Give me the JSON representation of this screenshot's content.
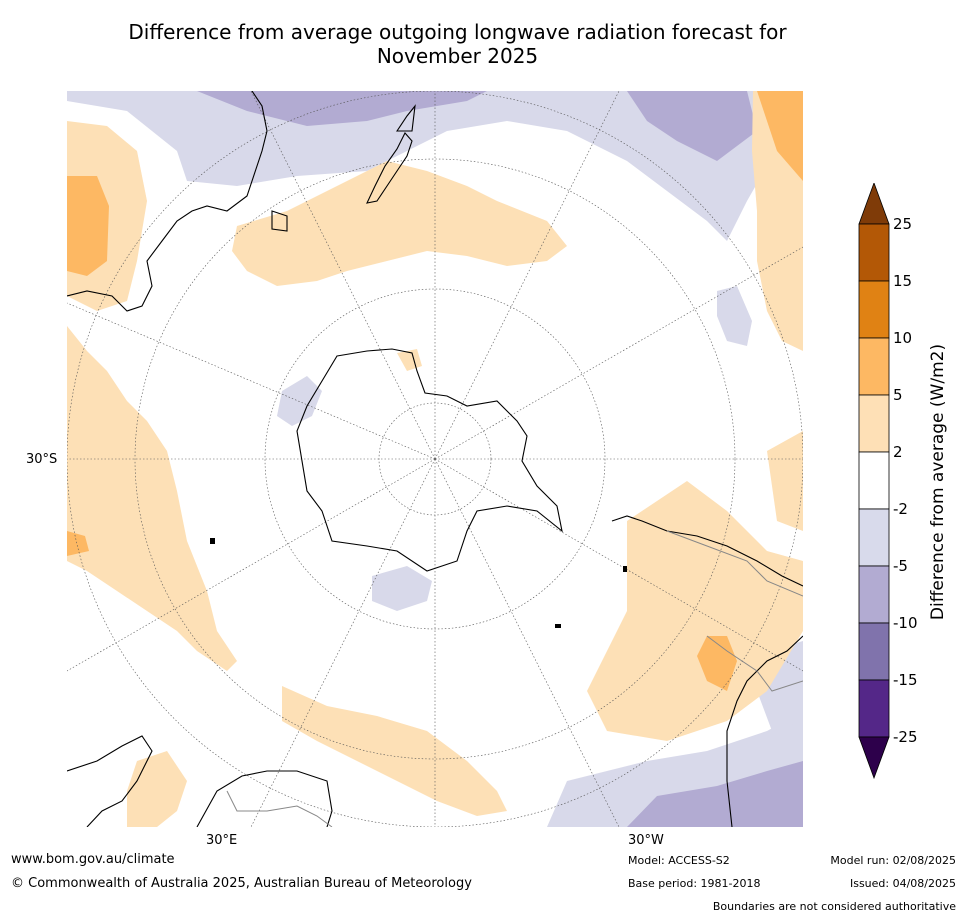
{
  "title_line1": "Difference from average outgoing longwave radiation forecast for",
  "title_line2": "November 2025",
  "map": {
    "lat_label": "30°S",
    "lon_label_left": "30°E",
    "lon_label_right": "30°W",
    "colors": {
      "pos_2_5": "#fde0b6",
      "pos_5_10": "#fdb863",
      "pos_10_15": "#e08214",
      "neg_2_5": "#d8d9ea",
      "neg_5_10": "#b2abd2",
      "neg_10_15": "#8073ac",
      "land_outline": "#000000"
    }
  },
  "colorbar": {
    "label": "Difference from average (W/m2)",
    "ticks": [
      "25",
      "15",
      "10",
      "5",
      "2",
      "-2",
      "-5",
      "-10",
      "-15",
      "-25"
    ],
    "colors": [
      "#b35806",
      "#e08214",
      "#fdb863",
      "#fee0b6",
      "#ffffff",
      "#d8daeb",
      "#b2abd2",
      "#8073ac",
      "#542788"
    ],
    "over_color": "#7f3b08",
    "under_color": "#2d004b"
  },
  "footer": {
    "website": "www.bom.gov.au/climate",
    "copyright": "© Commonwealth of Australia 2025, Australian Bureau of Meteorology",
    "model": "Model: ACCESS-S2",
    "base_period": "Base period: 1981-2018",
    "model_run": "Model run: 02/08/2025",
    "issued": "Issued: 04/08/2025",
    "disclaimer": "Boundaries are not considered authoritative"
  }
}
